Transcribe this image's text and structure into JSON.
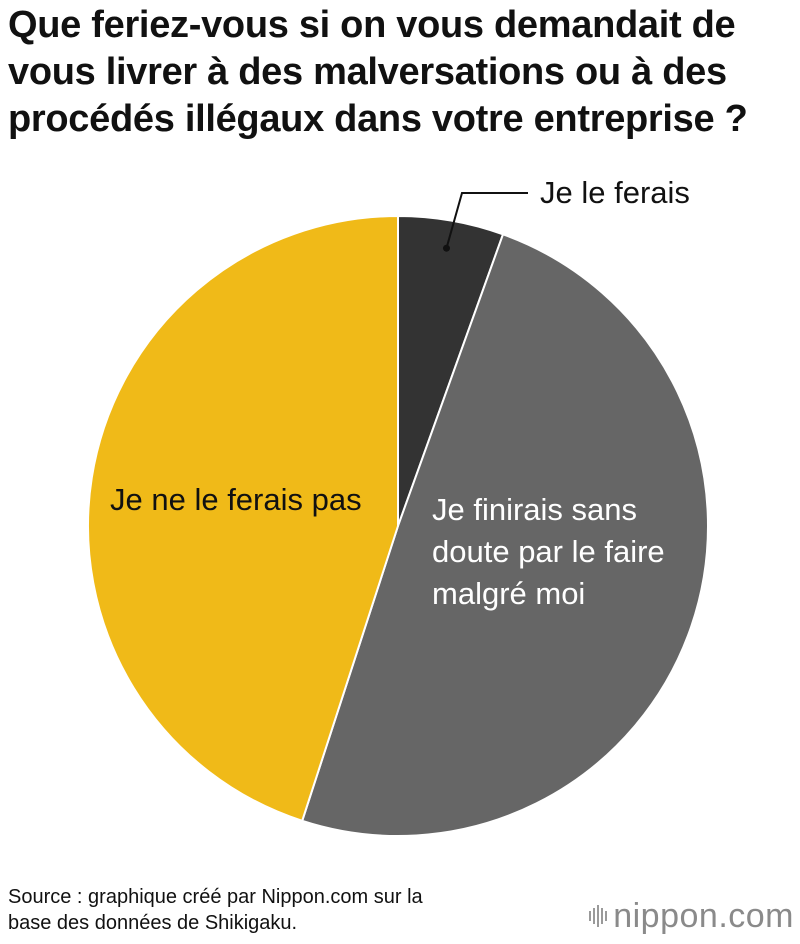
{
  "title_lines": [
    "Que feriez-vous si on vous demandait de",
    "vous livrer à des malversations ou à des",
    "procédés illégaux dans votre entreprise ?"
  ],
  "chart_data": {
    "type": "pie",
    "title": "Que feriez-vous si on vous demandait de vous livrer à des malversations ou à des procédés illégaux dans votre entreprise ?",
    "start_angle_deg": 0,
    "direction": "clockwise",
    "slices": [
      {
        "label": "Je le ferais",
        "label_lines": [
          "Je le ferais"
        ],
        "value": 5.5,
        "color": "#333333",
        "label_color": "#111111",
        "label_placement": "outside-callout"
      },
      {
        "label": "Je finirais sans doute par le faire malgré moi",
        "label_lines": [
          "Je finirais sans",
          "doute par le faire",
          "malgré moi"
        ],
        "value": 49.5,
        "color": "#666666",
        "label_color": "#ffffff",
        "label_placement": "inside"
      },
      {
        "label": "Je ne le ferais pas",
        "label_lines": [
          "Je ne le ferais pas"
        ],
        "value": 45.0,
        "color": "#f0ba18",
        "label_color": "#111111",
        "label_placement": "inside"
      }
    ]
  },
  "source_lines": [
    "Source : graphique créé par Nippon.com sur la",
    "base des données de Shikigaku."
  ],
  "logo": {
    "name": "nippon",
    "dot": ".",
    "tld": "com",
    "icon": "nippon-bars-icon"
  }
}
